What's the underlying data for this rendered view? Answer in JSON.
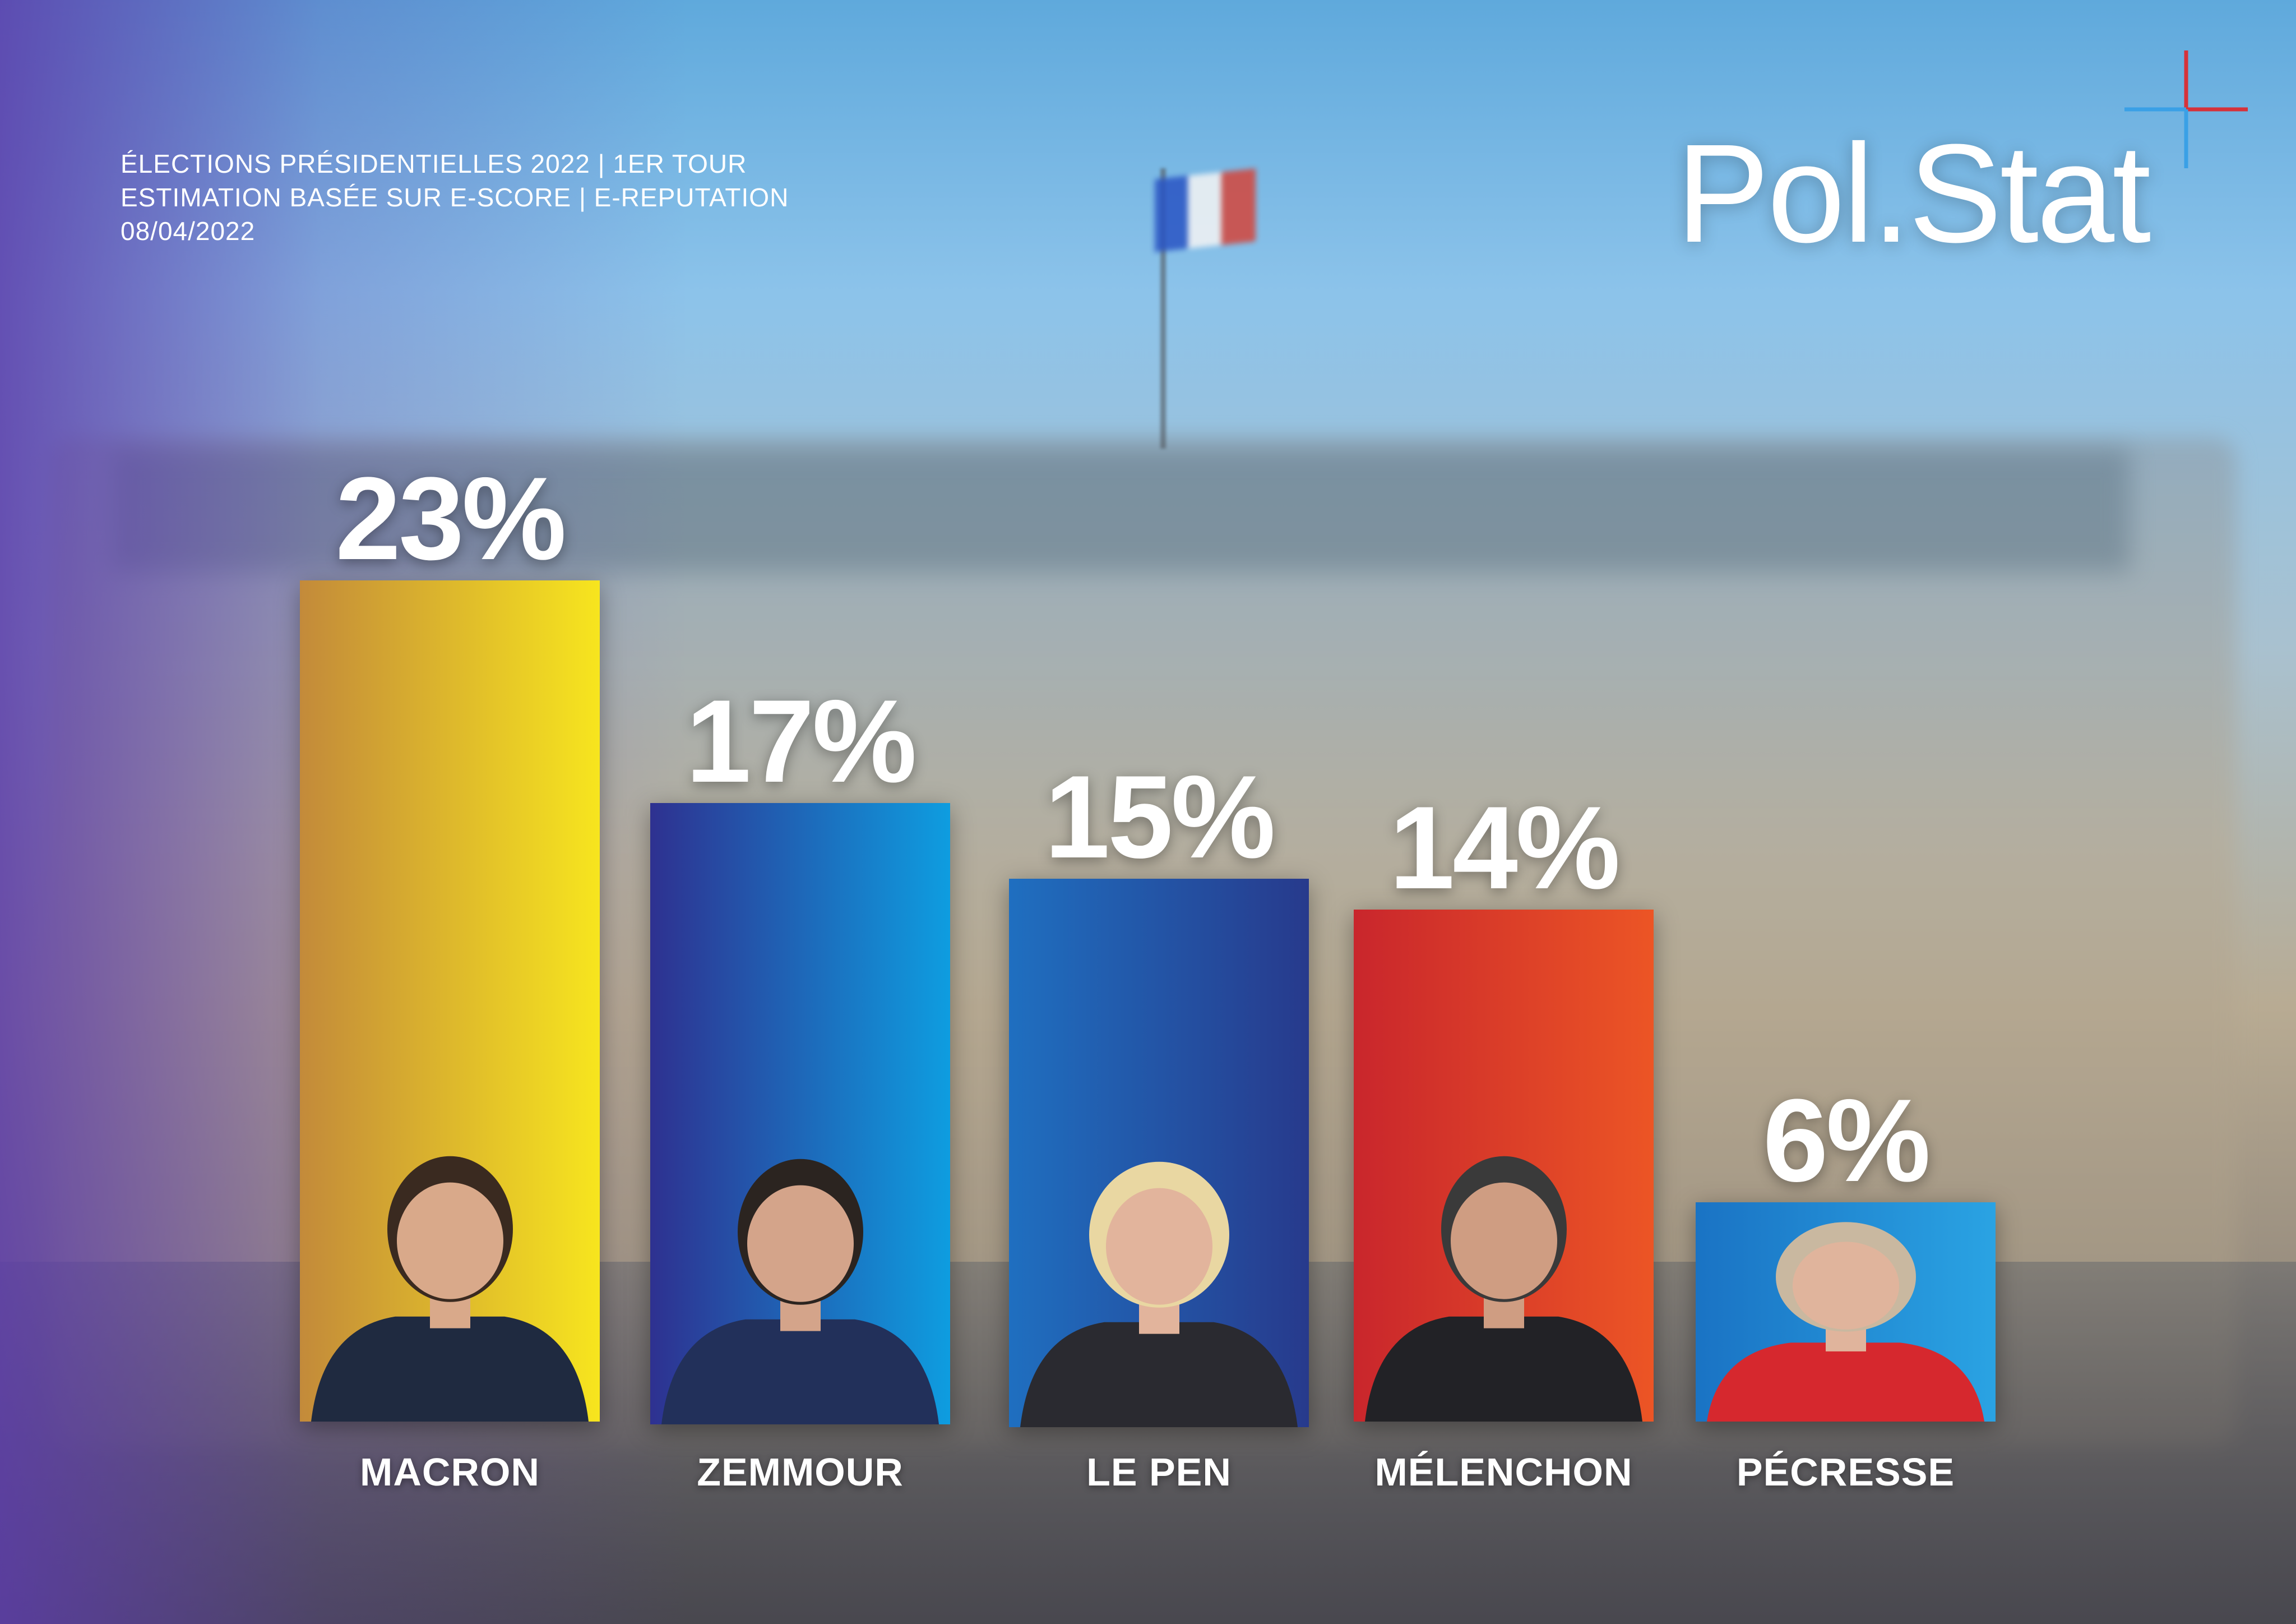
{
  "header": {
    "line1": "ÉLECTIONS PRÉSIDENTIELLES 2022 | 1ER TOUR",
    "line2": "ESTIMATION BASÉE SUR E-SCORE | E-REPUTATION",
    "line3": "08/04/2022"
  },
  "logo": {
    "text": "Pol.Stat"
  },
  "chart_data": {
    "type": "bar",
    "categories": [
      "MACRON",
      "ZEMMOUR",
      "LE PEN",
      "MÉLENCHON",
      "PÉCRESSE"
    ],
    "values": [
      23,
      17,
      15,
      14,
      6
    ],
    "value_labels": [
      "23%",
      "17%",
      "15%",
      "14%",
      "6%"
    ],
    "unit": "%",
    "colors": [
      [
        "#c38a3a",
        "#f7e51e"
      ],
      [
        "#2e3190",
        "#0e9de0"
      ],
      [
        "#1f6fc0",
        "#273a8c"
      ],
      [
        "#c9262c",
        "#ec5525"
      ],
      [
        "#1a73c4",
        "#2aa3e3"
      ]
    ],
    "grid": false,
    "legend": "none"
  }
}
